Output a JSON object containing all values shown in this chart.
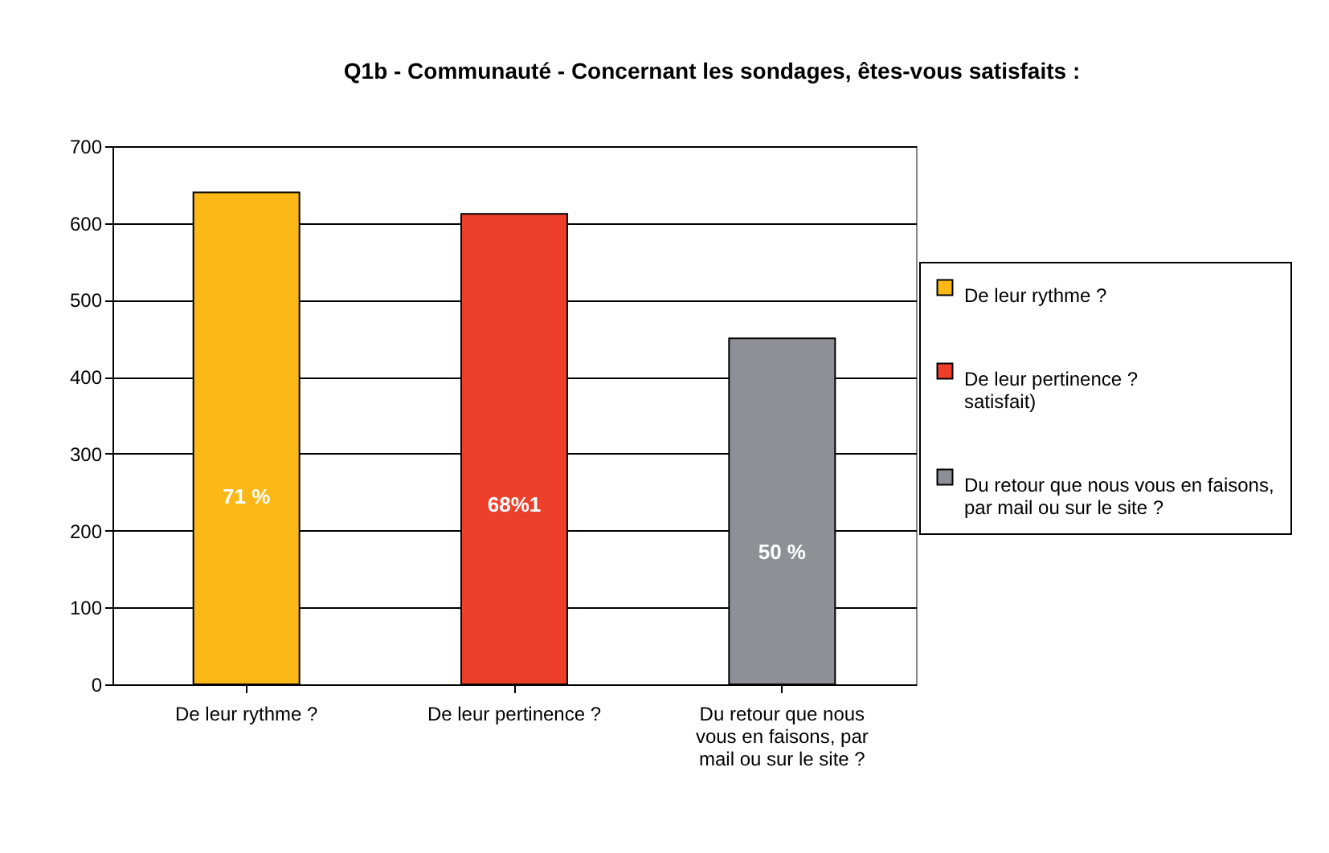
{
  "chart_data": {
    "type": "bar",
    "title": "Q1b - Communauté - Concernant les sondages, êtes-vous satisfaits :",
    "categories": [
      "De leur rythme ?",
      "De leur pertinence ?",
      "Du retour que nous vous en faisons, par mail ou sur le site ?"
    ],
    "series": [
      {
        "name": "De leur rythme ?",
        "color": "#fbb817",
        "values": [
          640,
          null,
          null
        ]
      },
      {
        "name": "De leur pertinence ?\nsatisfait)",
        "color": "#ee3f2b",
        "values": [
          null,
          612,
          null
        ]
      },
      {
        "name": "Du retour que nous vous en faisons,\npar mail ou sur le site ?",
        "color": "#8e9096",
        "values": [
          null,
          null,
          450
        ]
      }
    ],
    "annotations": [
      "71 %",
      "68%1",
      "50 %"
    ],
    "ylim": [
      0,
      700
    ],
    "yticks": [
      0,
      100,
      200,
      300,
      400,
      500,
      600,
      700
    ],
    "grid": "y",
    "legend": "right"
  }
}
